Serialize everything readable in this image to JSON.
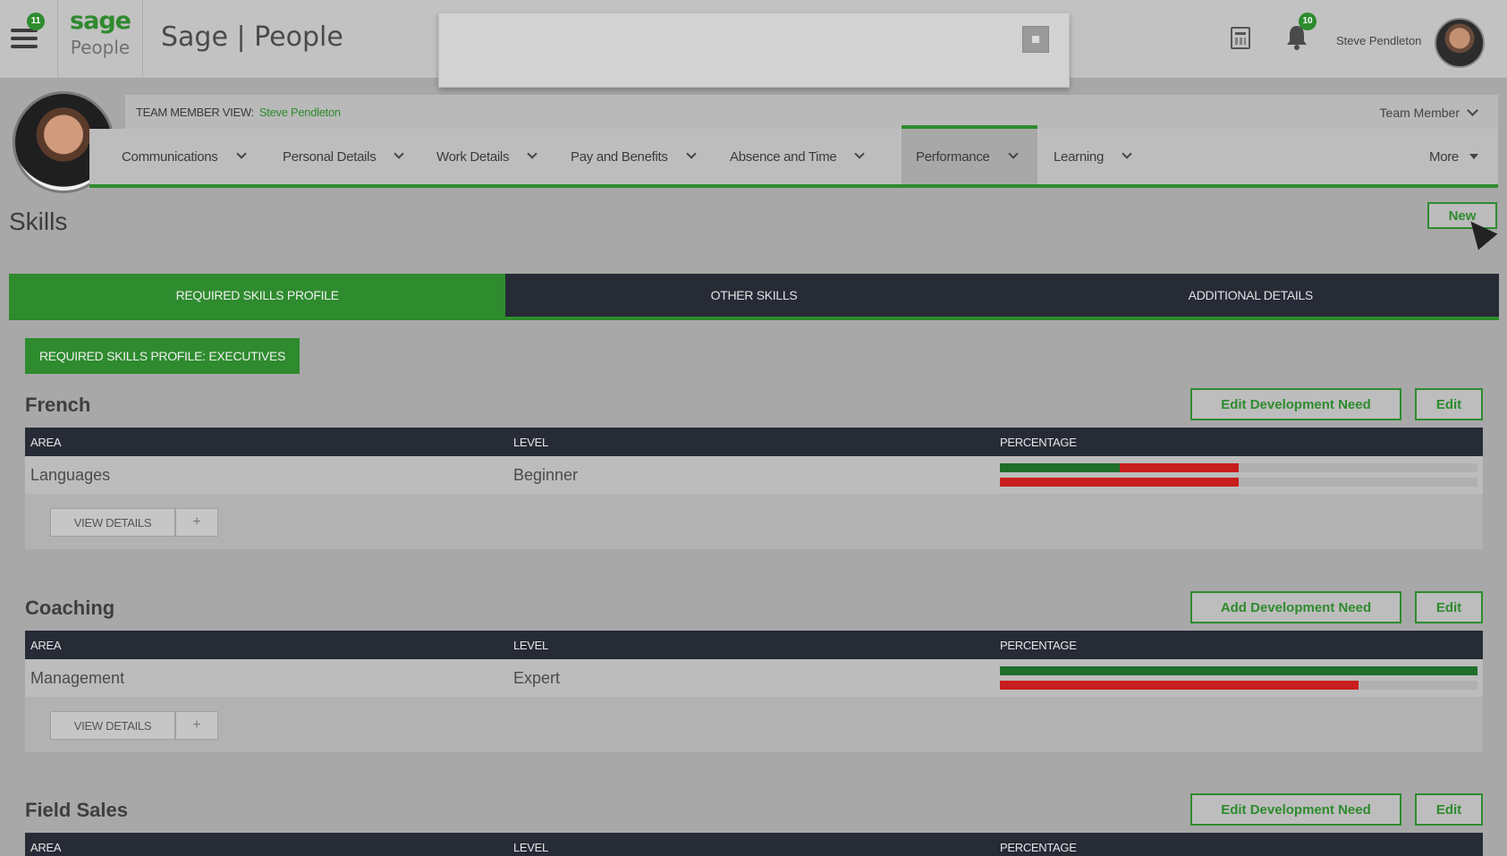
{
  "header": {
    "menu_badge": "11",
    "logo_top": "sage",
    "logo_bottom": "People",
    "app_title": "Sage | People",
    "search": {
      "value": "",
      "placeholder": ""
    },
    "notification_badge": "10",
    "user_name": "Steve Pendleton"
  },
  "profile": {
    "team_member_view_label": "TEAM MEMBER VIEW:",
    "team_member_name": "Steve Pendleton",
    "role_selector": "Team Member"
  },
  "nav": {
    "items": [
      {
        "label": "Communications"
      },
      {
        "label": "Personal Details"
      },
      {
        "label": "Work Details"
      },
      {
        "label": "Pay and Benefits"
      },
      {
        "label": "Absence and Time"
      },
      {
        "label": "Performance"
      },
      {
        "label": "Learning"
      }
    ],
    "more_label": "More",
    "active": "Performance"
  },
  "page": {
    "title": "Skills",
    "new_button": "New",
    "tabs": [
      {
        "label": "REQUIRED SKILLS PROFILE"
      },
      {
        "label": "OTHER SKILLS"
      },
      {
        "label": "ADDITIONAL DETAILS"
      }
    ],
    "profile_badge": "REQUIRED SKILLS PROFILE: EXECUTIVES"
  },
  "table_headers": {
    "area": "AREA",
    "level": "LEVEL",
    "percentage": "PERCENTAGE"
  },
  "skills": [
    {
      "name": "French",
      "dev_button": "Edit Development Need",
      "edit_button": "Edit",
      "area": "Languages",
      "level": "Beginner",
      "actual_pct": 0.25,
      "target_pct": 0.5,
      "view_details": "VIEW DETAILS",
      "plus": "+"
    },
    {
      "name": "Coaching",
      "dev_button": "Add Development Need",
      "edit_button": "Edit",
      "area": "Management",
      "level": "Expert",
      "actual_pct": 1.0,
      "target_pct": 0.75,
      "view_details": "VIEW DETAILS",
      "plus": "+"
    },
    {
      "name": "Field Sales",
      "dev_button": "Edit Development Need",
      "edit_button": "Edit"
    }
  ],
  "colors": {
    "brand_green": "#2e8b2e",
    "dark_header": "#262b36",
    "bar_red": "#c81e1e",
    "bar_green": "#1f6e2a"
  },
  "icons": {
    "menu": "hamburger-icon",
    "search": "search-icon",
    "calendar": "calendar-icon",
    "notifications": "bell-icon",
    "pointer": "mouse-cursor"
  }
}
